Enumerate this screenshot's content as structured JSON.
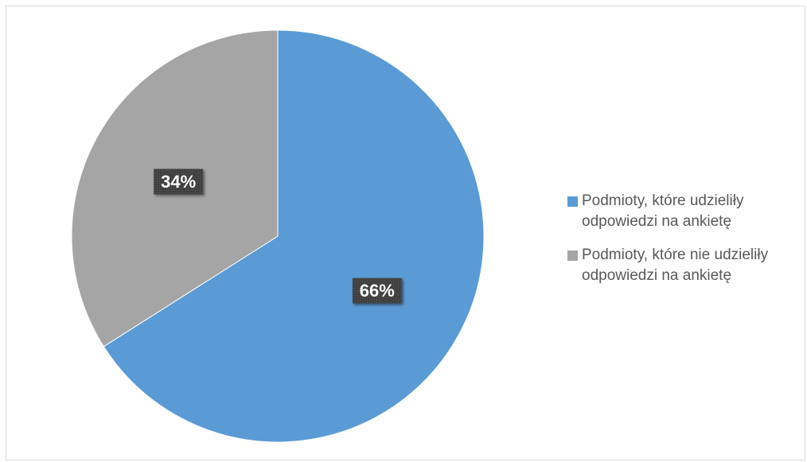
{
  "chart_data": {
    "type": "pie",
    "categories": [
      "Podmioty, które udzieliły odpowiedzi na ankietę",
      "Podmioty, które nie udzieliły odpowiedzi na ankietę"
    ],
    "values": [
      66,
      34
    ],
    "labels": [
      "66%",
      "34%"
    ],
    "colors": [
      "#5b9bd5",
      "#a5a5a5"
    ],
    "start_angle": "12 o'clock",
    "direction": "clockwise",
    "legend_position": "right"
  }
}
